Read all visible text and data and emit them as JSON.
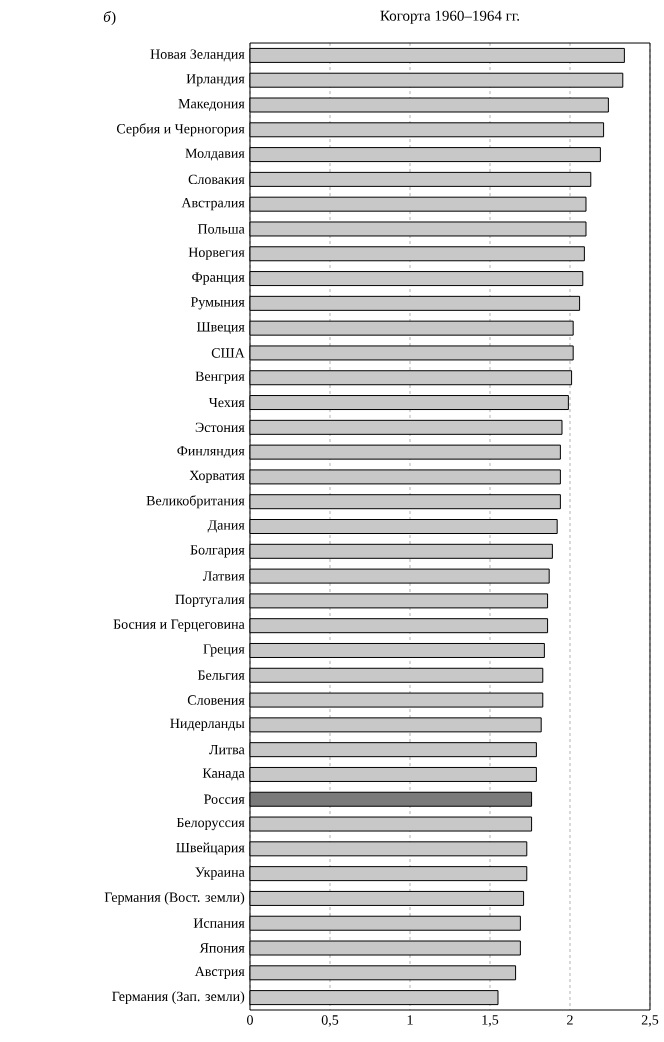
{
  "chart_data": {
    "type": "bar",
    "orientation": "horizontal",
    "title": "Когорта 1960–1964 гг.",
    "annotations": [
      "*б*)"
    ],
    "categories": [
      "Новая Зеландия",
      "Ирландия",
      "Македония",
      "Сербия и Черногория",
      "Молдавия",
      "Словакия",
      "Австралия",
      "Польша",
      "Норвегия",
      "Франция",
      "Румыния",
      "Швеция",
      "США",
      "Венгрия",
      "Чехия",
      "Эстония",
      "Финляндия",
      "Хорватия",
      "Великобритания",
      "Дания",
      "Болгария",
      "Латвия",
      "Португалия",
      "Босния и Герцеговина",
      "Греция",
      "Бельгия",
      "Словения",
      "Нидерланды",
      "Литва",
      "Канада",
      "Россия",
      "Белоруссия",
      "Швейцария",
      "Украина",
      "Германия (Вост. земли)",
      "Испания",
      "Япония",
      "Австрия",
      "Германия (Зап. земли)"
    ],
    "values": [
      2.34,
      2.33,
      2.24,
      2.21,
      2.19,
      2.13,
      2.1,
      2.1,
      2.09,
      2.08,
      2.06,
      2.02,
      2.02,
      2.01,
      1.99,
      1.95,
      1.94,
      1.94,
      1.94,
      1.92,
      1.89,
      1.87,
      1.86,
      1.86,
      1.84,
      1.83,
      1.83,
      1.82,
      1.79,
      1.79,
      1.76,
      1.76,
      1.73,
      1.73,
      1.71,
      1.69,
      1.69,
      1.66,
      1.55
    ],
    "colors": [
      "#c8c8c8",
      "#c8c8c8",
      "#c8c8c8",
      "#c8c8c8",
      "#c8c8c8",
      "#c8c8c8",
      "#c8c8c8",
      "#c8c8c8",
      "#c8c8c8",
      "#c8c8c8",
      "#c8c8c8",
      "#c8c8c8",
      "#c8c8c8",
      "#c8c8c8",
      "#c8c8c8",
      "#c8c8c8",
      "#c8c8c8",
      "#c8c8c8",
      "#c8c8c8",
      "#c8c8c8",
      "#c8c8c8",
      "#c8c8c8",
      "#c8c8c8",
      "#c8c8c8",
      "#c8c8c8",
      "#c8c8c8",
      "#c8c8c8",
      "#c8c8c8",
      "#c8c8c8",
      "#c8c8c8",
      "#7a7a7a",
      "#c8c8c8",
      "#c8c8c8",
      "#c8c8c8",
      "#c8c8c8",
      "#c8c8c8",
      "#c8c8c8",
      "#c8c8c8",
      "#c8c8c8"
    ],
    "xlim": [
      0,
      2.5
    ],
    "xticks": [
      0,
      {
        "value": 0.5,
        "label": "0,5"
      },
      1,
      {
        "value": 1.5,
        "label": "1,5"
      },
      2,
      {
        "value": 2.5,
        "label": "2,5"
      }
    ],
    "grid": "x"
  }
}
